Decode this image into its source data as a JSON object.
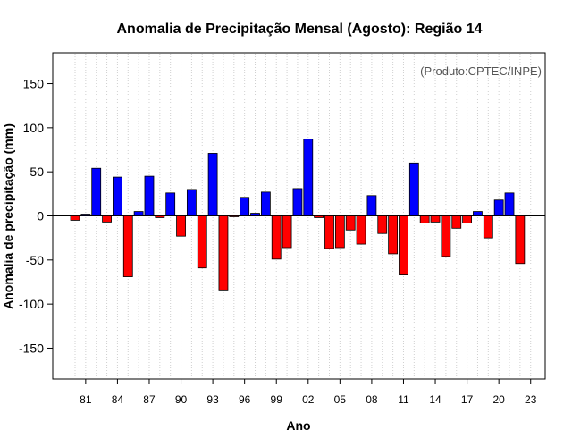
{
  "chart_data": {
    "type": "bar",
    "title": "Anomalia de Precipitação Mensal (Agosto): Região 14",
    "xlabel": "Ano",
    "ylabel": "Anomalia de precipitação (mm)",
    "annotation": "(Produto:CPTEC/INPE)",
    "ylim": [
      -185,
      185
    ],
    "yticks": [
      -150,
      -100,
      -50,
      0,
      50,
      100,
      150
    ],
    "ytick_labels": [
      "-150",
      "-100",
      "-50",
      "0",
      "50",
      "100",
      "150"
    ],
    "xtick_labels": [
      "81",
      "84",
      "87",
      "90",
      "93",
      "96",
      "99",
      "02",
      "05",
      "08",
      "11",
      "14",
      "17",
      "20",
      "23"
    ],
    "grid": "vertical dotted",
    "positive_color": "#0000ff",
    "negative_color": "#ff0000",
    "years": [
      1980,
      1981,
      1982,
      1983,
      1984,
      1985,
      1986,
      1987,
      1988,
      1989,
      1990,
      1991,
      1992,
      1993,
      1994,
      1995,
      1996,
      1997,
      1998,
      1999,
      2000,
      2001,
      2002,
      2003,
      2004,
      2005,
      2006,
      2007,
      2008,
      2009,
      2010,
      2011,
      2012,
      2013,
      2014,
      2015,
      2016,
      2017,
      2018,
      2019,
      2020,
      2021,
      2022,
      2023
    ],
    "values": [
      -5,
      2,
      54,
      -7,
      44,
      -69,
      5,
      45,
      -2,
      26,
      -23,
      30,
      -59,
      71,
      -84,
      -1,
      21,
      3,
      27,
      -49,
      -36,
      31,
      87,
      -2,
      -37,
      -36,
      -16,
      -32,
      23,
      -20,
      -43,
      -67,
      60,
      -8,
      -7,
      -46,
      -14,
      -8,
      5,
      -25,
      18,
      26,
      -54,
      0
    ]
  }
}
